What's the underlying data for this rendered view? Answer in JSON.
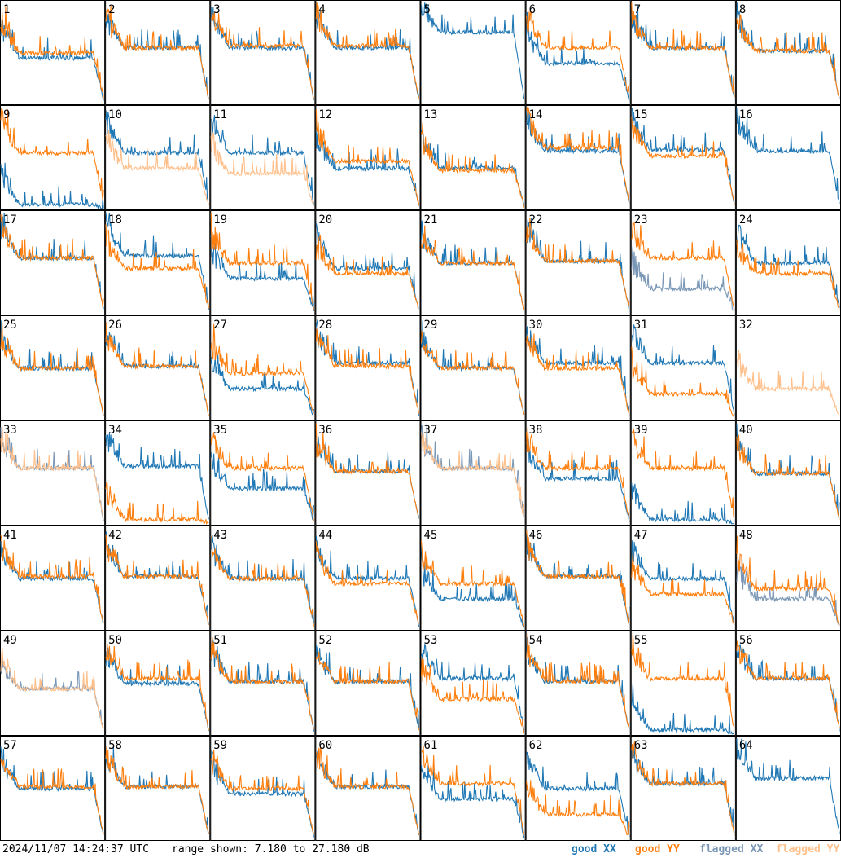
{
  "colors": {
    "good_xx": "#1f77b4",
    "good_yy": "#ff7f0e",
    "flagged_xx": "#7a97b6",
    "flagged_yy": "#ffbf8a"
  },
  "footer": {
    "timestamp": "2024/11/07 14:24:37 UTC",
    "range_text": "range shown: 7.180 to 27.180 dB",
    "legend": {
      "good_xx": "good XX",
      "good_yy": "good YY",
      "flagged_xx": "flagged XX",
      "flagged_yy": "flagged YY"
    }
  },
  "chart_data": {
    "type": "line",
    "ylim": [
      7.18,
      27.18
    ],
    "yunit": "dB",
    "grid_layout": "8x8",
    "panels": [
      {
        "id": "1",
        "xx": "good",
        "yy": "good",
        "level_xx": 0.45,
        "level_yy": 0.5
      },
      {
        "id": "2",
        "xx": "good",
        "yy": "good",
        "level_xx": 0.55,
        "level_yy": 0.55
      },
      {
        "id": "3",
        "xx": "good",
        "yy": "good",
        "level_xx": 0.55,
        "level_yy": 0.57
      },
      {
        "id": "4",
        "xx": "good",
        "yy": "good",
        "level_xx": 0.55,
        "level_yy": 0.57
      },
      {
        "id": "5",
        "xx": "good",
        "yy": "none",
        "level_xx": 0.7,
        "level_yy": null
      },
      {
        "id": "6",
        "xx": "good",
        "yy": "good",
        "level_xx": 0.4,
        "level_yy": 0.55
      },
      {
        "id": "7",
        "xx": "good",
        "yy": "good",
        "level_xx": 0.55,
        "level_yy": 0.55
      },
      {
        "id": "8",
        "xx": "good",
        "yy": "good",
        "level_xx": 0.52,
        "level_yy": 0.52
      },
      {
        "id": "9",
        "xx": "good",
        "yy": "good",
        "level_xx": 0.05,
        "level_yy": 0.55
      },
      {
        "id": "10",
        "xx": "good",
        "yy": "flagged",
        "level_xx": 0.55,
        "level_yy": 0.4
      },
      {
        "id": "11",
        "xx": "good",
        "yy": "flagged",
        "level_xx": 0.55,
        "level_yy": 0.35
      },
      {
        "id": "12",
        "xx": "good",
        "yy": "good",
        "level_xx": 0.4,
        "level_yy": 0.47
      },
      {
        "id": "13",
        "xx": "good",
        "yy": "good",
        "level_xx": 0.4,
        "level_yy": 0.38
      },
      {
        "id": "14",
        "xx": "good",
        "yy": "good",
        "level_xx": 0.57,
        "level_yy": 0.6
      },
      {
        "id": "15",
        "xx": "good",
        "yy": "good",
        "level_xx": 0.58,
        "level_yy": 0.52
      },
      {
        "id": "16",
        "xx": "good",
        "yy": "none",
        "level_xx": 0.57,
        "level_yy": null
      },
      {
        "id": "17",
        "xx": "good",
        "yy": "good",
        "level_xx": 0.55,
        "level_yy": 0.55
      },
      {
        "id": "18",
        "xx": "good",
        "yy": "good",
        "level_xx": 0.57,
        "level_yy": 0.45
      },
      {
        "id": "19",
        "xx": "good",
        "yy": "good",
        "level_xx": 0.35,
        "level_yy": 0.5
      },
      {
        "id": "20",
        "xx": "good",
        "yy": "good",
        "level_xx": 0.45,
        "level_yy": 0.4
      },
      {
        "id": "21",
        "xx": "good",
        "yy": "good",
        "level_xx": 0.5,
        "level_yy": 0.5
      },
      {
        "id": "22",
        "xx": "good",
        "yy": "good",
        "level_xx": 0.52,
        "level_yy": 0.52
      },
      {
        "id": "23",
        "xx": "flagged",
        "yy": "good",
        "level_xx": 0.25,
        "level_yy": 0.55
      },
      {
        "id": "24",
        "xx": "good",
        "yy": "good",
        "level_xx": 0.5,
        "level_yy": 0.4
      },
      {
        "id": "25",
        "xx": "good",
        "yy": "good",
        "level_xx": 0.5,
        "level_yy": 0.5
      },
      {
        "id": "26",
        "xx": "good",
        "yy": "good",
        "level_xx": 0.52,
        "level_yy": 0.52
      },
      {
        "id": "27",
        "xx": "good",
        "yy": "good",
        "level_xx": 0.3,
        "level_yy": 0.45
      },
      {
        "id": "28",
        "xx": "good",
        "yy": "good",
        "level_xx": 0.55,
        "level_yy": 0.52
      },
      {
        "id": "29",
        "xx": "good",
        "yy": "good",
        "level_xx": 0.5,
        "level_yy": 0.5
      },
      {
        "id": "30",
        "xx": "good",
        "yy": "good",
        "level_xx": 0.55,
        "level_yy": 0.5
      },
      {
        "id": "31",
        "xx": "good",
        "yy": "good",
        "level_xx": 0.55,
        "level_yy": 0.25
      },
      {
        "id": "32",
        "xx": "none",
        "yy": "flagged",
        "level_xx": null,
        "level_yy": 0.3
      },
      {
        "id": "33",
        "xx": "flagged",
        "yy": "flagged",
        "level_xx": 0.55,
        "level_yy": 0.55
      },
      {
        "id": "34",
        "xx": "good",
        "yy": "good",
        "level_xx": 0.57,
        "level_yy": 0.05
      },
      {
        "id": "35",
        "xx": "good",
        "yy": "good",
        "level_xx": 0.35,
        "level_yy": 0.55
      },
      {
        "id": "36",
        "xx": "good",
        "yy": "good",
        "level_xx": 0.52,
        "level_yy": 0.52
      },
      {
        "id": "37",
        "xx": "flagged",
        "yy": "flagged",
        "level_xx": 0.55,
        "level_yy": 0.55
      },
      {
        "id": "38",
        "xx": "good",
        "yy": "good",
        "level_xx": 0.45,
        "level_yy": 0.55
      },
      {
        "id": "39",
        "xx": "good",
        "yy": "good",
        "level_xx": 0.05,
        "level_yy": 0.55
      },
      {
        "id": "40",
        "xx": "good",
        "yy": "good",
        "level_xx": 0.5,
        "level_yy": 0.5
      },
      {
        "id": "41",
        "xx": "good",
        "yy": "good",
        "level_xx": 0.5,
        "level_yy": 0.52
      },
      {
        "id": "42",
        "xx": "good",
        "yy": "good",
        "level_xx": 0.52,
        "level_yy": 0.52
      },
      {
        "id": "43",
        "xx": "good",
        "yy": "good",
        "level_xx": 0.5,
        "level_yy": 0.5
      },
      {
        "id": "44",
        "xx": "good",
        "yy": "good",
        "level_xx": 0.5,
        "level_yy": 0.45
      },
      {
        "id": "45",
        "xx": "good",
        "yy": "good",
        "level_xx": 0.3,
        "level_yy": 0.45
      },
      {
        "id": "46",
        "xx": "good",
        "yy": "good",
        "level_xx": 0.52,
        "level_yy": 0.52
      },
      {
        "id": "47",
        "xx": "good",
        "yy": "good",
        "level_xx": 0.5,
        "level_yy": 0.35
      },
      {
        "id": "48",
        "xx": "flagged",
        "yy": "good",
        "level_xx": 0.3,
        "level_yy": 0.4
      },
      {
        "id": "49",
        "xx": "flagged",
        "yy": "flagged",
        "level_xx": 0.45,
        "level_yy": 0.45
      },
      {
        "id": "50",
        "xx": "good",
        "yy": "good",
        "level_xx": 0.5,
        "level_yy": 0.55
      },
      {
        "id": "51",
        "xx": "good",
        "yy": "good",
        "level_xx": 0.52,
        "level_yy": 0.52
      },
      {
        "id": "52",
        "xx": "good",
        "yy": "good",
        "level_xx": 0.52,
        "level_yy": 0.52
      },
      {
        "id": "53",
        "xx": "good",
        "yy": "good",
        "level_xx": 0.55,
        "level_yy": 0.35
      },
      {
        "id": "54",
        "xx": "good",
        "yy": "good",
        "level_xx": 0.52,
        "level_yy": 0.52
      },
      {
        "id": "55",
        "xx": "good",
        "yy": "good",
        "level_xx": 0.05,
        "level_yy": 0.55
      },
      {
        "id": "56",
        "xx": "good",
        "yy": "good",
        "level_xx": 0.55,
        "level_yy": 0.55
      },
      {
        "id": "57",
        "xx": "good",
        "yy": "good",
        "level_xx": 0.5,
        "level_yy": 0.52
      },
      {
        "id": "58",
        "xx": "good",
        "yy": "good",
        "level_xx": 0.52,
        "level_yy": 0.52
      },
      {
        "id": "59",
        "xx": "good",
        "yy": "good",
        "level_xx": 0.45,
        "level_yy": 0.5
      },
      {
        "id": "60",
        "xx": "good",
        "yy": "good",
        "level_xx": 0.52,
        "level_yy": 0.52
      },
      {
        "id": "61",
        "xx": "good",
        "yy": "good",
        "level_xx": 0.4,
        "level_yy": 0.55
      },
      {
        "id": "62",
        "xx": "good",
        "yy": "good",
        "level_xx": 0.5,
        "level_yy": 0.25
      },
      {
        "id": "63",
        "xx": "good",
        "yy": "good",
        "level_xx": 0.55,
        "level_yy": 0.55
      },
      {
        "id": "64",
        "xx": "good",
        "yy": "none",
        "level_xx": 0.6,
        "level_yy": null
      }
    ]
  }
}
